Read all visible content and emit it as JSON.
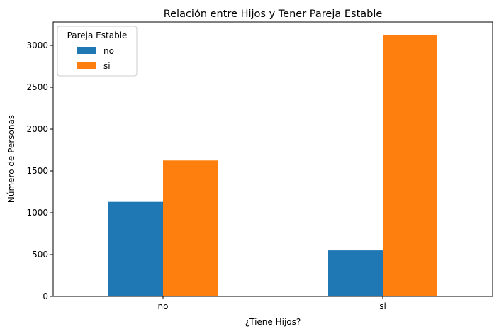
{
  "chart_data": {
    "type": "bar",
    "title": "Relación entre Hijos y Tener Pareja Estable",
    "xlabel": "¿Tiene Hijos?",
    "ylabel": "Número de Personas",
    "categories": [
      "no",
      "si"
    ],
    "series": [
      {
        "name": "no",
        "color": "#1f77b4",
        "values": [
          1130,
          550
        ]
      },
      {
        "name": "si",
        "color": "#ff7f0e",
        "values": [
          1625,
          3120
        ]
      }
    ],
    "ylim": [
      0,
      3280
    ],
    "yticks": [
      0,
      500,
      1000,
      1500,
      2000,
      2500,
      3000
    ],
    "legend": {
      "title": "Pareja Estable",
      "placement": "top-left"
    },
    "grid": false
  }
}
